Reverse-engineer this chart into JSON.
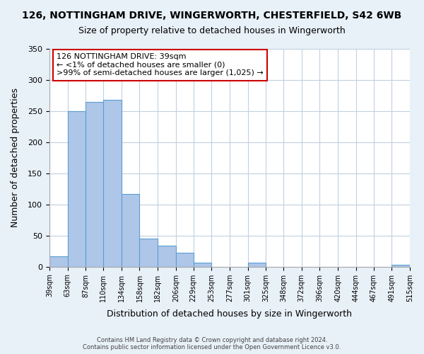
{
  "title1": "126, NOTTINGHAM DRIVE, WINGERWORTH, CHESTERFIELD, S42 6WB",
  "title2": "Size of property relative to detached houses in Wingerworth",
  "xlabel": "Distribution of detached houses by size in Wingerworth",
  "ylabel": "Number of detached properties",
  "bin_labels": [
    "39sqm",
    "63sqm",
    "87sqm",
    "110sqm",
    "134sqm",
    "158sqm",
    "182sqm",
    "206sqm",
    "229sqm",
    "253sqm",
    "277sqm",
    "301sqm",
    "325sqm",
    "348sqm",
    "372sqm",
    "396sqm",
    "420sqm",
    "444sqm",
    "467sqm",
    "491sqm",
    "515sqm"
  ],
  "bin_edges": [
    39,
    63,
    87,
    110,
    134,
    158,
    182,
    206,
    229,
    253,
    277,
    301,
    325,
    348,
    372,
    396,
    420,
    444,
    467,
    491,
    515
  ],
  "bar_heights": [
    17,
    250,
    265,
    268,
    117,
    45,
    34,
    22,
    7,
    0,
    0,
    6,
    0,
    0,
    0,
    0,
    0,
    0,
    0,
    3
  ],
  "bar_color": "#aec6e8",
  "bar_edge_color": "#5a9fd4",
  "ylim": [
    0,
    350
  ],
  "yticks": [
    0,
    50,
    100,
    150,
    200,
    250,
    300,
    350
  ],
  "annotation_title": "126 NOTTINGHAM DRIVE: 39sqm",
  "annotation_line1": "← <1% of detached houses are smaller (0)",
  "annotation_line2": ">99% of semi-detached houses are larger (1,025) →",
  "annotation_box_color": "#ffffff",
  "annotation_box_edge_color": "#cc0000",
  "footer1": "Contains HM Land Registry data © Crown copyright and database right 2024.",
  "footer2": "Contains public sector information licensed under the Open Government Licence v3.0.",
  "bg_color": "#e8f0f8",
  "plot_bg_color": "#ffffff",
  "grid_color": "#c0d0e0"
}
